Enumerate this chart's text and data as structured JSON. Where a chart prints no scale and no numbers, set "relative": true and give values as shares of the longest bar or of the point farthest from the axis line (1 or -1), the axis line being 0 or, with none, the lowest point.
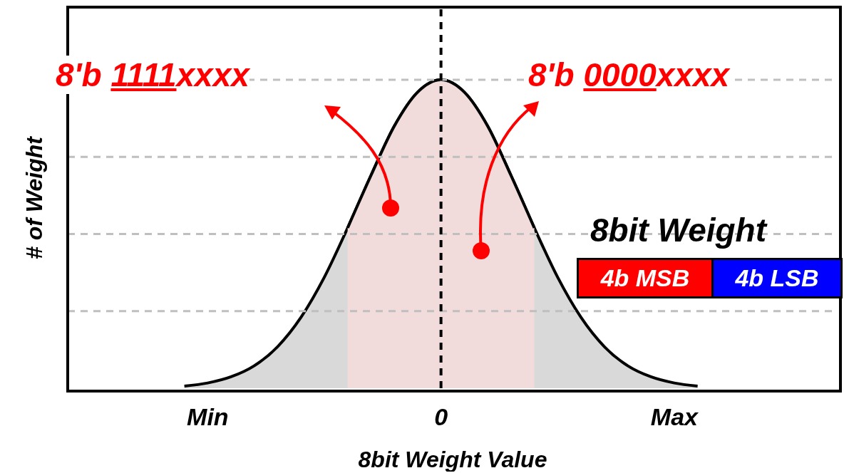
{
  "chart_data": {
    "type": "area",
    "relative": true,
    "xlabel": "8bit Weight Value",
    "ylabel": "# of Weight",
    "categories": [
      null,
      null,
      null,
      null,
      null,
      null,
      "Min",
      null,
      null,
      null,
      null,
      null,
      null,
      null,
      null,
      null,
      "0",
      null,
      null,
      null,
      null,
      null,
      null,
      null,
      null,
      null,
      "Max",
      null,
      null,
      null,
      null,
      null,
      null,
      null
    ],
    "series": [
      {
        "color": "#d9d9d9",
        "values": [
          null,
          null,
          null,
          null,
          null,
          0.007,
          0.017,
          0.037,
          0.073,
          0.135,
          0.23,
          0.36,
          0.52,
          0.69,
          0.85,
          0.96,
          1,
          0.96,
          0.85,
          0.69,
          0.52,
          0.36,
          0.23,
          0.135,
          0.073,
          0.037,
          0.017,
          0.007,
          null,
          null,
          null,
          null,
          null,
          null
        ]
      },
      {
        "color": "#f2dcdb",
        "values": [
          null,
          null,
          null,
          null,
          null,
          null,
          null,
          null,
          null,
          null,
          null,
          null,
          0.52,
          0.69,
          0.85,
          0.96,
          1,
          0.96,
          0.85,
          0.69,
          0.52,
          null,
          null,
          null,
          null,
          null,
          null,
          null,
          null,
          null,
          null,
          null,
          null,
          null
        ]
      }
    ],
    "ref_lines": [
      {
        "axis": "x",
        "value": "0",
        "label": null,
        "color": "#000000",
        "line_style": "dashed"
      },
      {
        "axis": "y",
        "value": 0.25,
        "label": null,
        "color": "#bfbfbf",
        "line_style": "dashed"
      },
      {
        "axis": "y",
        "value": 0.5,
        "label": null,
        "color": "#bfbfbf",
        "line_style": "dashed"
      },
      {
        "axis": "y",
        "value": 0.75,
        "label": null,
        "color": "#bfbfbf",
        "line_style": "dashed"
      },
      {
        "axis": "y",
        "value": 1,
        "label": null,
        "color": "#bfbfbf",
        "line_style": "dashed"
      }
    ],
    "annotations": [
      "8'b 1111xxxx",
      "8'b 0000xxxx",
      "8bit Weight",
      "4b MSB",
      "4b LSB"
    ]
  }
}
